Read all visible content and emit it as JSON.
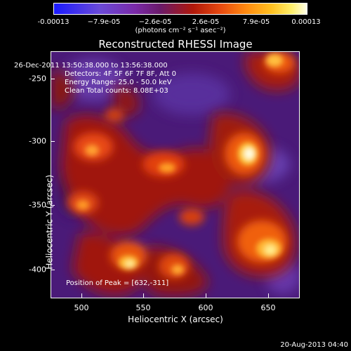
{
  "colorbar": {
    "ticks": [
      "-0.00013",
      "−7.9e-05",
      "−2.6e-05",
      "2.6e-05",
      "7.9e-05",
      "0.00013"
    ],
    "units": "(photons cm⁻² s⁻¹ asec⁻²)"
  },
  "title": "Reconstructed RHESSI Image",
  "info": {
    "line1": "26-Dec-2011 13:50:38.000 to 13:56:38.000",
    "line2": "Detectors: 4F 5F 6F 7F 8F, Att 0",
    "line3": "Energy Range: 25.0 - 50.0 keV",
    "line4": "Clean    Total counts: 8.08E+03",
    "peak": "Position of Peak = [632,-311]"
  },
  "axes": {
    "xlabel": "Heliocentric X (arcsec)",
    "ylabel": "Heliocentric Y (arcsec)",
    "xticks": [
      "500",
      "550",
      "600",
      "650"
    ],
    "yticks": [
      "-250",
      "-300",
      "-350",
      "-400"
    ]
  },
  "footer": "20-Aug-2013 04:40"
}
